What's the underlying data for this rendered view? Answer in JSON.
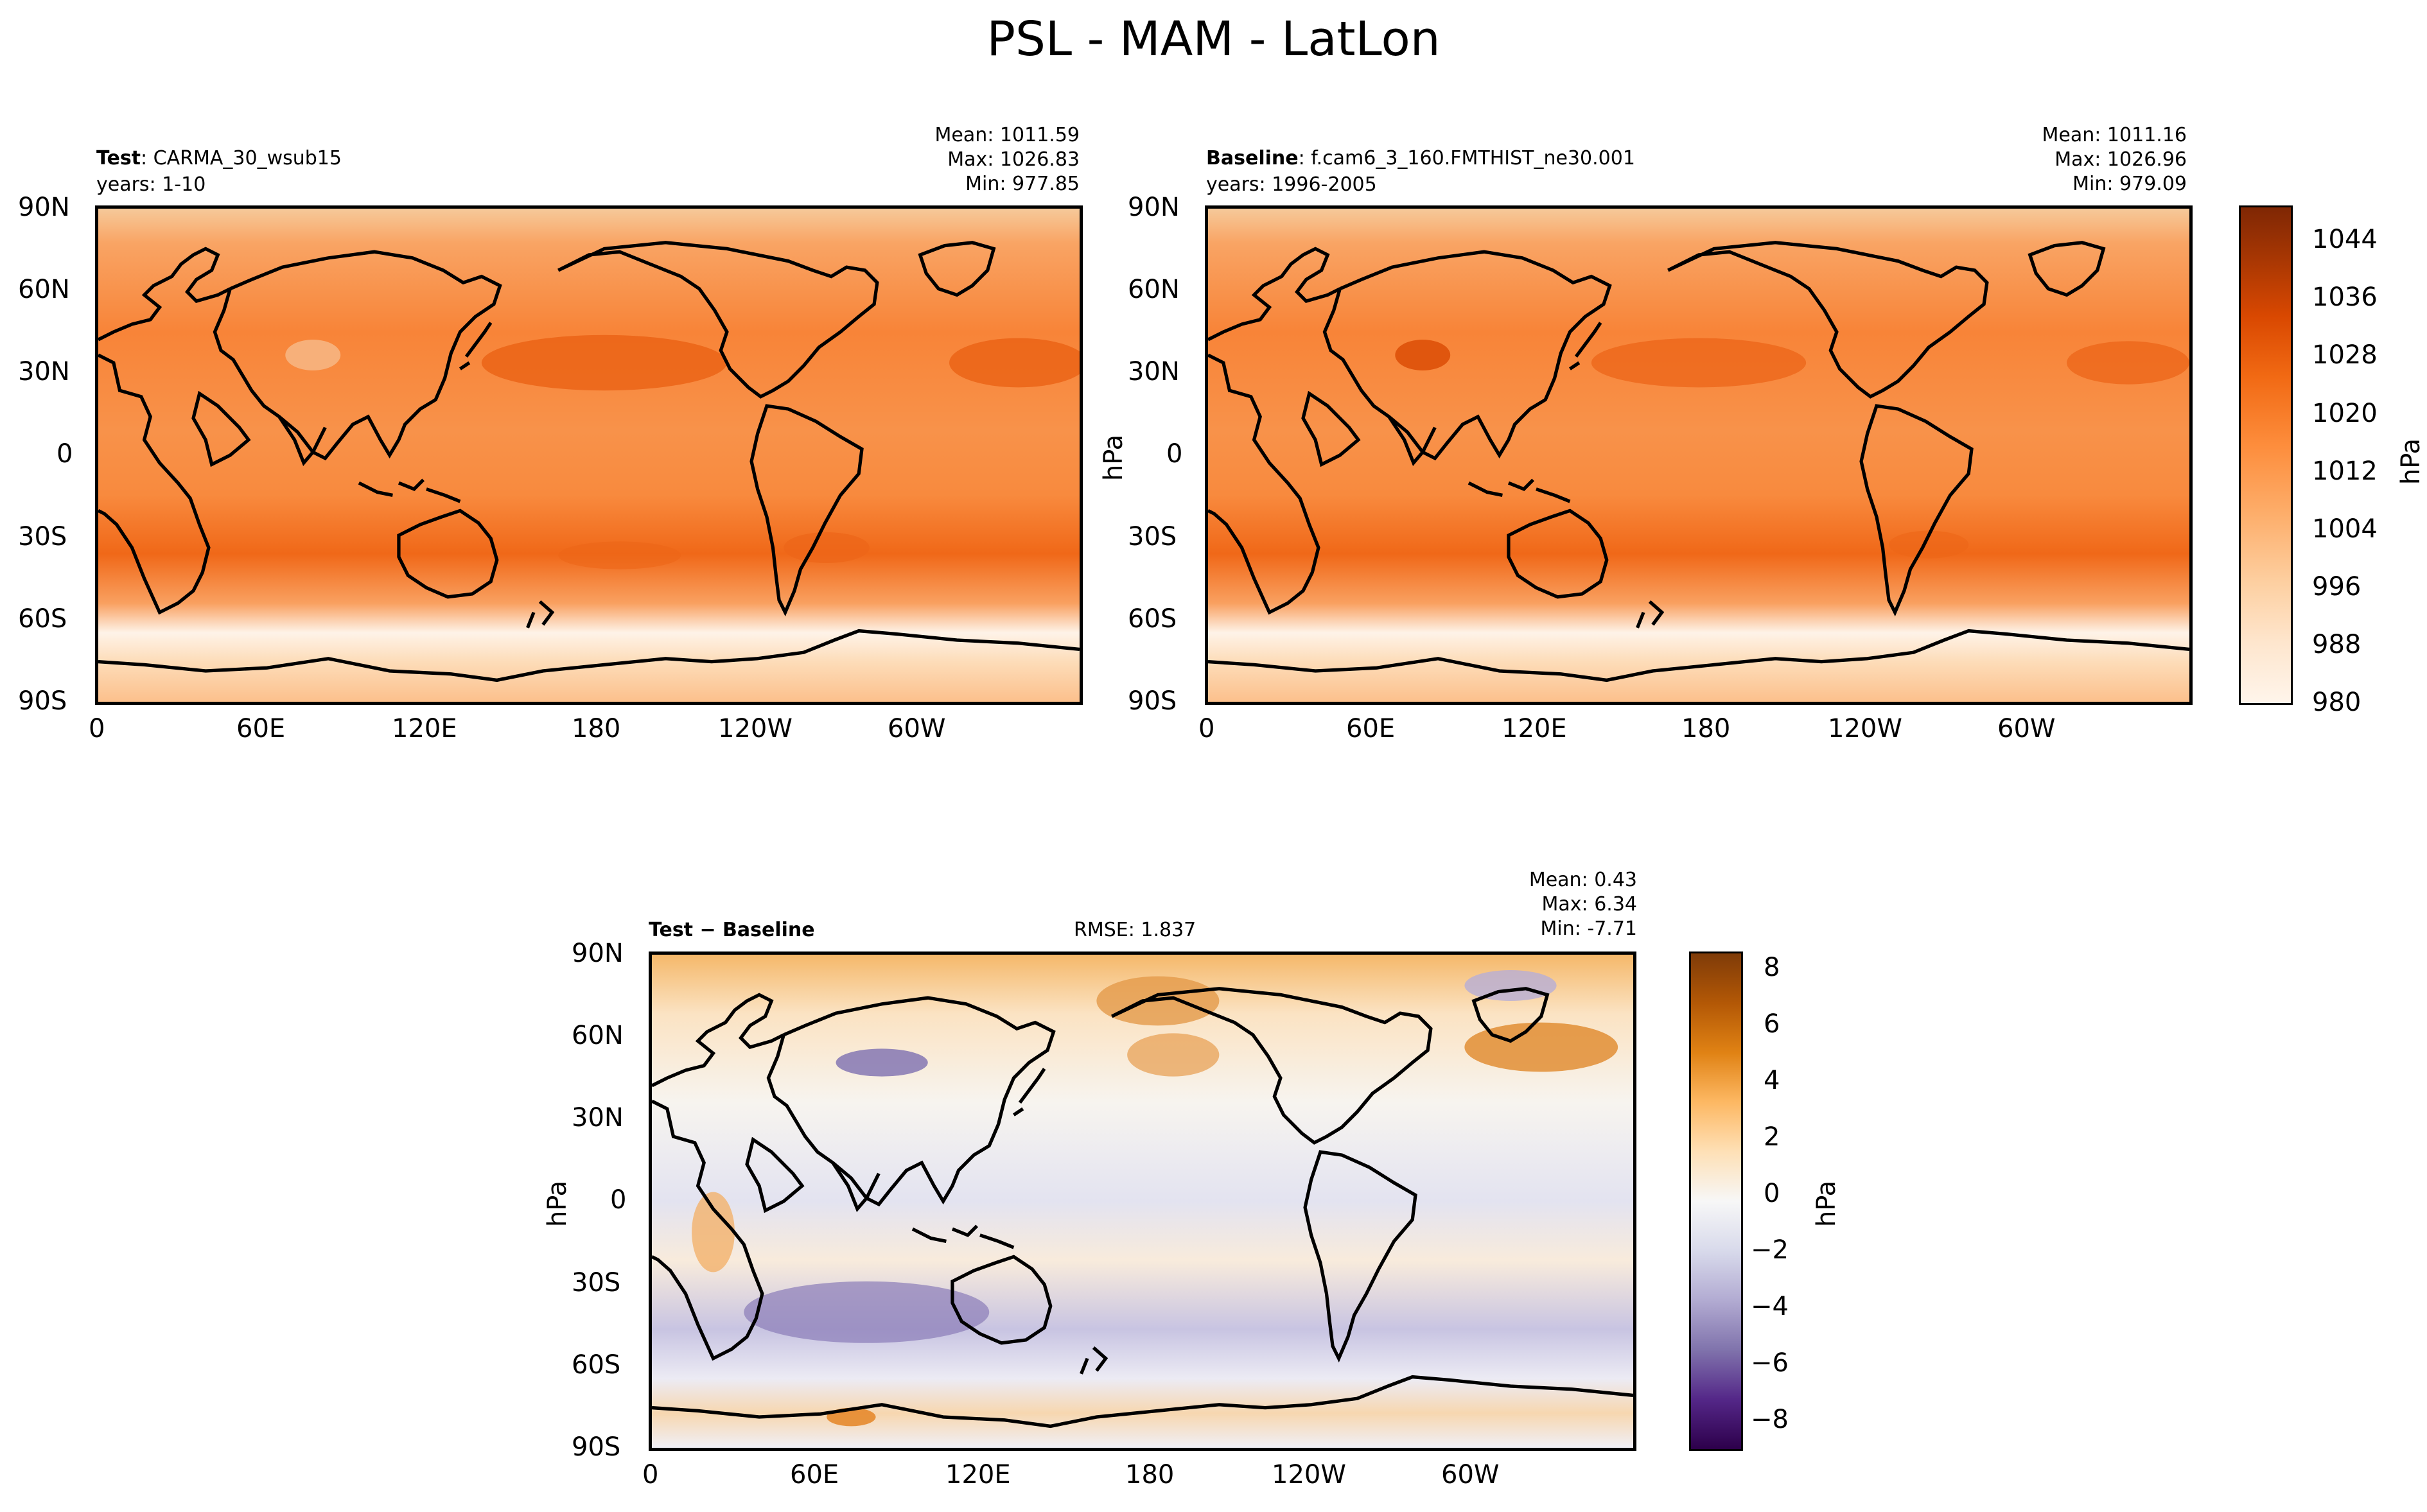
{
  "figure_title": "PSL - MAM - LatLon",
  "test_panel": {
    "name_bold": "Test",
    "name_rest": ": CARMA_30_wsub15",
    "years": "years: 1-10",
    "mean": "Mean: 1011.59",
    "max": "Max: 1026.83",
    "min": "Min: 977.85"
  },
  "baseline_panel": {
    "name_bold": "Baseline",
    "name_rest": ": f.cam6_3_160.FMTHIST_ne30.001",
    "years": "years: 1996-2005",
    "mean": "Mean: 1011.16",
    "max": "Max: 1026.96",
    "min": "Min: 979.09",
    "ylabel": "hPa"
  },
  "diff_panel": {
    "name": "Test − Baseline",
    "rmse": "RMSE: 1.837",
    "mean": "Mean:  0.43",
    "max": "Max:  6.34",
    "min": "Min: -7.71",
    "ylabel": "hPa"
  },
  "axes": {
    "lat_ticks": [
      "90N",
      "60N",
      "30N",
      "0",
      "30S",
      "60S",
      "90S"
    ],
    "lon_ticks": [
      "0",
      "60E",
      "120E",
      "180",
      "120W",
      "60W"
    ]
  },
  "colorbar_main": {
    "label": "hPa",
    "ticks": [
      "1044",
      "1036",
      "1028",
      "1020",
      "1012",
      "1004",
      "996",
      "988",
      "980"
    ],
    "range": [
      980,
      1048
    ],
    "colormap": "Oranges",
    "colors": [
      "#fff5eb",
      "#fee6ce",
      "#fdd0a2",
      "#fdae6b",
      "#fd8d3c",
      "#f16913",
      "#d94801",
      "#a63603",
      "#7f2704"
    ]
  },
  "colorbar_diff": {
    "label": "hPa",
    "ticks": [
      "8",
      "6",
      "4",
      "2",
      "0",
      "−2",
      "−4",
      "−6",
      "−8"
    ],
    "range": [
      -9,
      9
    ],
    "colormap": "PuOr_r",
    "colors": [
      "#2d004b",
      "#542788",
      "#8073ac",
      "#b2abd2",
      "#d8daeb",
      "#f7f7f7",
      "#fee0b6",
      "#fdb863",
      "#e08214",
      "#b35806",
      "#7f3b08"
    ]
  }
}
